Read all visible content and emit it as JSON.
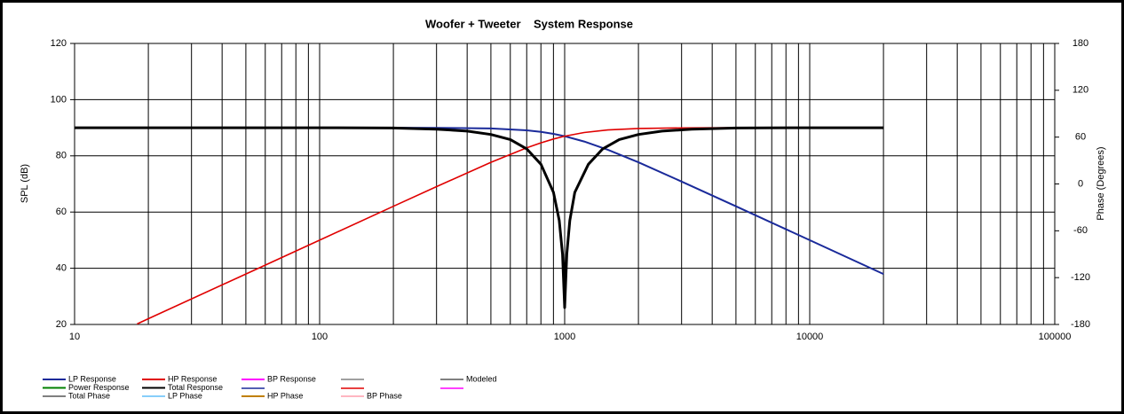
{
  "chart_data": {
    "type": "line",
    "title": "Woofer + Tweeter    System Response",
    "y_label": "SPL (dB)",
    "y2_label": "Phase (Degrees)",
    "log_x": true,
    "grid": true,
    "minor_grid": true,
    "xlim": [
      10,
      100000
    ],
    "xticks": [
      10,
      100,
      1000,
      10000,
      100000
    ],
    "ylim": [
      20,
      120
    ],
    "yticks": [
      20,
      40,
      60,
      80,
      100,
      120
    ],
    "y2lim": [
      -180,
      180
    ],
    "y2ticks": [
      -180,
      -120,
      -60,
      0,
      60,
      120,
      180
    ],
    "series": [
      {
        "name": "LP Response",
        "color": "#1a2a9a",
        "width": 2,
        "x": [
          10,
          100,
          200,
          300,
          500,
          700,
          800,
          900,
          1000,
          1200,
          1500,
          2000,
          3000,
          5000,
          10000,
          20000
        ],
        "values": [
          90,
          90,
          89.99,
          89.96,
          89.74,
          89.07,
          88.51,
          87.81,
          87,
          85.12,
          82.17,
          77.7,
          70.86,
          62.04,
          50,
          37.96
        ]
      },
      {
        "name": "HP Response",
        "color": "#e00000",
        "width": 1.6,
        "x": [
          18,
          20,
          50,
          100,
          200,
          300,
          500,
          700,
          800,
          900,
          1000,
          1200,
          1500,
          2000,
          3000,
          5000
        ],
        "values": [
          20.2,
          22.04,
          37.96,
          50,
          62.04,
          69.06,
          77.7,
          82.87,
          84.63,
          85.98,
          87,
          88.29,
          89.22,
          89.74,
          89.95,
          90
        ]
      },
      {
        "name": "Total Response",
        "color": "#000000",
        "width": 3,
        "x": [
          10,
          100,
          200,
          300,
          400,
          500,
          600,
          700,
          800,
          900,
          950,
          980,
          1000,
          1020,
          1050,
          1100,
          1250,
          1430,
          1670,
          2000,
          2500,
          3300,
          5000,
          10000,
          20000
        ],
        "values": [
          90,
          90,
          89.9,
          89.5,
          88.8,
          87.6,
          85.8,
          82.5,
          77,
          67,
          57,
          45,
          26,
          45,
          57,
          67,
          77,
          82.5,
          85.8,
          87.6,
          88.8,
          89.5,
          89.9,
          90,
          90
        ]
      }
    ],
    "legend_only": [
      {
        "name": "BP Response",
        "color": "#ff00ff"
      },
      {
        "name": "Modeled",
        "color": "#808080"
      },
      {
        "name": "Power Response",
        "color": "#008000"
      },
      {
        "name": "Total Phase",
        "color": "#808080"
      },
      {
        "name": "LP Phase",
        "color": "#87cefa"
      },
      {
        "name": "HP Phase",
        "color": "#c08000"
      },
      {
        "name": "BP Phase",
        "color": "#ffb6c1"
      }
    ]
  }
}
